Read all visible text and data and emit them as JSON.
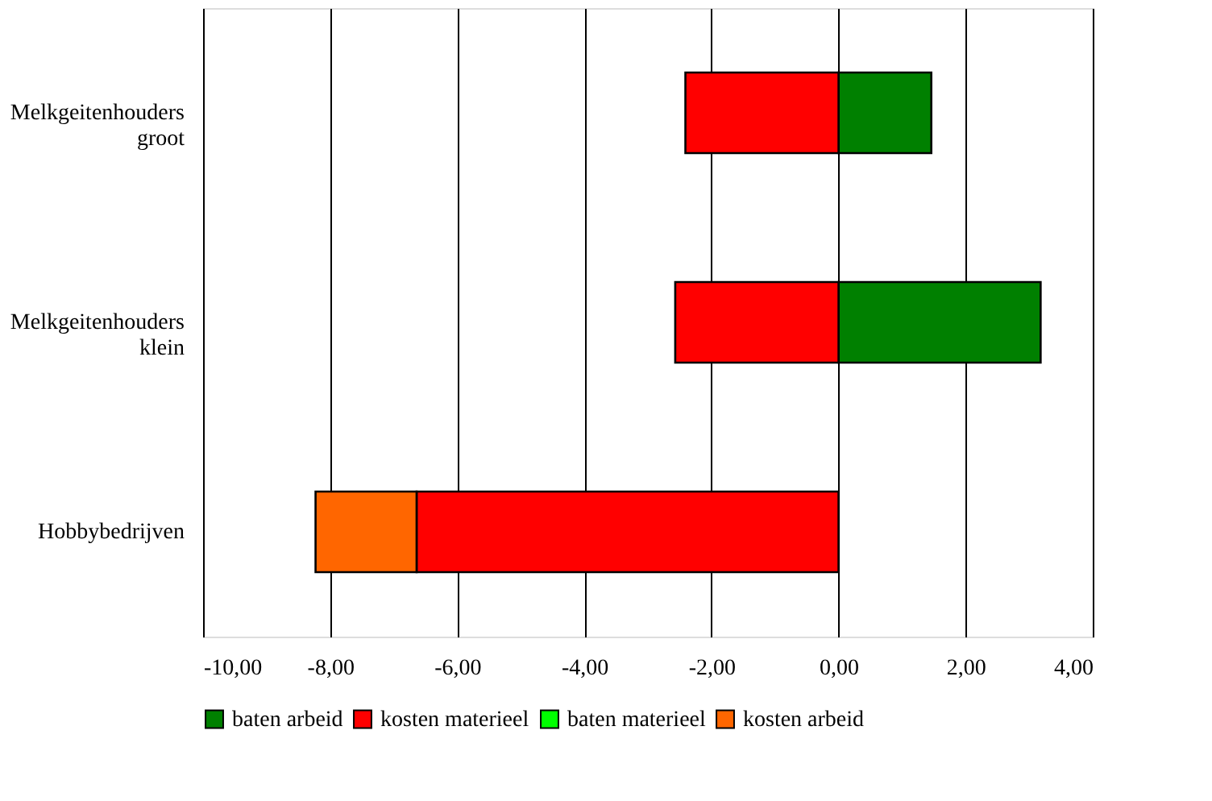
{
  "chart_data": {
    "type": "bar",
    "orientation": "horizontal",
    "stacked": true,
    "categories": [
      "Melkgeitenhouders groot",
      "Melkgeitenhouders klein",
      "Hobbybedrijven"
    ],
    "series": [
      {
        "name": "baten arbeid",
        "color": "#008000",
        "values": [
          1.46,
          3.18,
          null
        ]
      },
      {
        "name": "kosten materieel",
        "color": "#ff0000",
        "values": [
          -2.41,
          -2.57,
          -6.64
        ]
      },
      {
        "name": "baten materieel",
        "color": "#00ff00",
        "values": [
          null,
          null,
          null
        ]
      },
      {
        "name": "kosten arbeid",
        "color": "#ff6600",
        "values": [
          null,
          null,
          -1.59
        ]
      }
    ],
    "xlim": [
      -10,
      4
    ],
    "xticks": [
      {
        "value": -10,
        "label": "-10,00"
      },
      {
        "value": -8,
        "label": "-8,00"
      },
      {
        "value": -6,
        "label": "-6,00"
      },
      {
        "value": -4,
        "label": "-4,00"
      },
      {
        "value": -2,
        "label": "-2,00"
      },
      {
        "value": 0,
        "label": "0,00"
      },
      {
        "value": 2,
        "label": "2,00"
      },
      {
        "value": 4,
        "label": "4,00"
      }
    ],
    "grid": "x",
    "legend": "bottom"
  }
}
